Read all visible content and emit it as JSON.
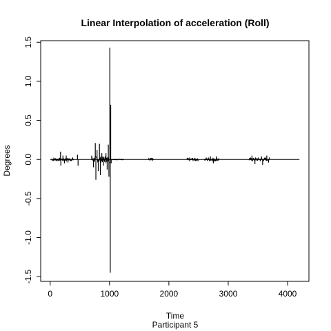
{
  "chart_data": {
    "type": "line",
    "title": "Linear Interpolation of acceleration (Roll)",
    "xlabel": "Time",
    "subtitle": "Participant  5",
    "ylabel": "Degrees",
    "xlim": [
      -160,
      4360
    ],
    "ylim": [
      -1.56,
      1.52
    ],
    "xticks": [
      0,
      1000,
      2000,
      3000,
      4000
    ],
    "yticks": [
      -1.5,
      -1.0,
      -0.5,
      0.0,
      0.5,
      1.0,
      1.5
    ],
    "xtick_labels": [
      "0",
      "1000",
      "2000",
      "3000",
      "4000"
    ],
    "ytick_labels": [
      "-1.5",
      "-1.0",
      "-0.5",
      "0.0",
      "0.5",
      "1.0",
      "1.5"
    ],
    "grid": false,
    "line_color": "#000000",
    "series": [
      {
        "x_range": [
          0,
          4200
        ],
        "baseline": 0.0,
        "spikes": [
          {
            "x": 175,
            "y": 0.1
          },
          {
            "x": 180,
            "y": -0.08
          },
          {
            "x": 215,
            "y": 0.05
          },
          {
            "x": 240,
            "y": -0.05
          },
          {
            "x": 270,
            "y": 0.05
          },
          {
            "x": 300,
            "y": -0.04
          },
          {
            "x": 460,
            "y": 0.06
          },
          {
            "x": 470,
            "y": -0.08
          },
          {
            "x": 700,
            "y": 0.05
          },
          {
            "x": 730,
            "y": -0.1
          },
          {
            "x": 760,
            "y": 0.21
          },
          {
            "x": 770,
            "y": -0.26
          },
          {
            "x": 790,
            "y": 0.12
          },
          {
            "x": 810,
            "y": -0.15
          },
          {
            "x": 830,
            "y": 0.2
          },
          {
            "x": 845,
            "y": -0.2
          },
          {
            "x": 870,
            "y": 0.08
          },
          {
            "x": 895,
            "y": -0.08
          },
          {
            "x": 940,
            "y": 0.08
          },
          {
            "x": 960,
            "y": -0.13
          },
          {
            "x": 980,
            "y": 0.19
          },
          {
            "x": 990,
            "y": -0.22
          },
          {
            "x": 1005,
            "y": 1.43
          },
          {
            "x": 1012,
            "y": -1.45
          },
          {
            "x": 1020,
            "y": 0.7
          },
          {
            "x": 1028,
            "y": -0.05
          },
          {
            "x": 1700,
            "y": 0.02
          },
          {
            "x": 1720,
            "y": -0.02
          },
          {
            "x": 2400,
            "y": 0.02
          },
          {
            "x": 2450,
            "y": -0.02
          },
          {
            "x": 2700,
            "y": 0.04
          },
          {
            "x": 2750,
            "y": -0.05
          },
          {
            "x": 2800,
            "y": 0.04
          },
          {
            "x": 3400,
            "y": 0.05
          },
          {
            "x": 3450,
            "y": -0.06
          },
          {
            "x": 3560,
            "y": 0.04
          },
          {
            "x": 3580,
            "y": -0.07
          },
          {
            "x": 3650,
            "y": 0.05
          },
          {
            "x": 3680,
            "y": -0.04
          }
        ],
        "noise_regions": [
          {
            "from": 20,
            "to": 400,
            "amp": 0.02
          },
          {
            "from": 700,
            "to": 1000,
            "amp": 0.04
          },
          {
            "from": 1000,
            "to": 1250,
            "amp": 0.005
          },
          {
            "from": 1650,
            "to": 1750,
            "amp": 0.015
          },
          {
            "from": 2300,
            "to": 2500,
            "amp": 0.015
          },
          {
            "from": 2600,
            "to": 2850,
            "amp": 0.02
          },
          {
            "from": 3350,
            "to": 3700,
            "amp": 0.02
          }
        ]
      }
    ]
  }
}
